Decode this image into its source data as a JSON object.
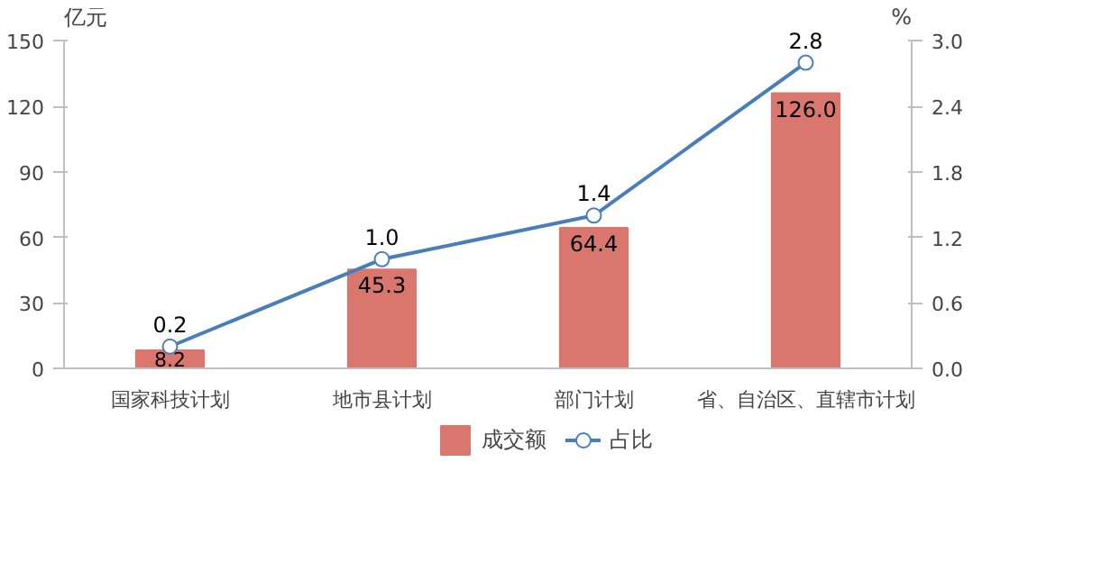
{
  "chart_data": {
    "type": "bar",
    "ylabel": "亿元",
    "y2label": "%",
    "categories": [
      "国家科技计划",
      "地市县计划",
      "部门计划",
      "省、自治区、直辖市计划"
    ],
    "series": [
      {
        "name": "成交额",
        "color": "#d9776e",
        "values": [
          8.2,
          45.3,
          64.4,
          126.0
        ],
        "value_labels": [
          "8.2",
          "45.3",
          "64.4",
          "126.0"
        ]
      },
      {
        "name": "占比",
        "type": "line",
        "axis": "y2",
        "color": "#4a7ebb",
        "marker": "circle",
        "values": [
          0.2,
          1.0,
          1.4,
          2.8
        ],
        "value_labels": [
          "0.2",
          "1.0",
          "1.4",
          "2.8"
        ]
      }
    ],
    "ylim": [
      0,
      150
    ],
    "yticks": [
      0,
      30,
      60,
      90,
      120,
      150
    ],
    "y2lim": [
      0,
      3.0
    ],
    "y2ticks": [
      {
        "value": 0,
        "label": "0.0"
      },
      {
        "value": 0.6,
        "label": "0.6"
      },
      {
        "value": 1.2,
        "label": "1.2"
      },
      {
        "value": 1.8,
        "label": "1.8"
      },
      {
        "value": 2.4,
        "label": "2.4"
      },
      {
        "value": 3.0,
        "label": "3.0"
      }
    ],
    "grid": false,
    "legend": "bottom"
  }
}
